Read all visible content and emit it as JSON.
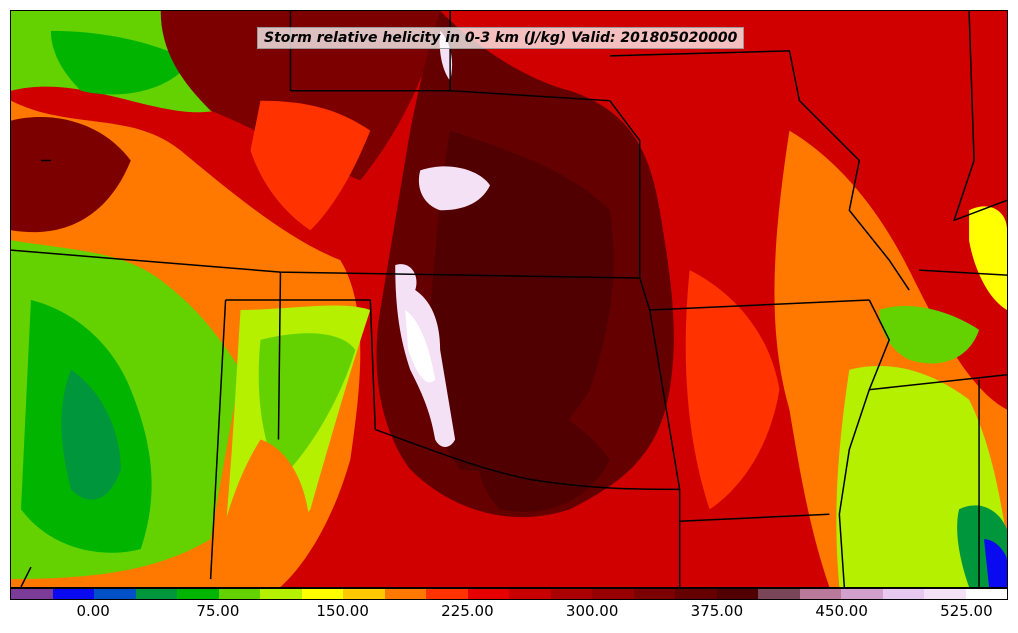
{
  "map": {
    "title": "Storm relative helicity in 0-3 km (J/kg) Valid: 201805020000",
    "variable": "Storm relative helicity in 0-3 km",
    "units": "J/kg",
    "valid_time": "201805020000",
    "region": "Central United States",
    "boundaries": "state borders, coastlines and rivers (black)"
  },
  "colorbar": {
    "ticks": [
      "0.00",
      "75.00",
      "150.00",
      "225.00",
      "300.00",
      "375.00",
      "450.00",
      "525.00"
    ],
    "tick_values": [
      0,
      75,
      150,
      225,
      300,
      375,
      450,
      525
    ],
    "range": [
      -50,
      550
    ],
    "interval": 25,
    "colors": [
      "#7a3c96",
      "#0a0af0",
      "#0050c8",
      "#00963c",
      "#00b400",
      "#64d200",
      "#b4f000",
      "#ffff00",
      "#ffc800",
      "#ff7800",
      "#ff3200",
      "#e60000",
      "#c80000",
      "#aa0000",
      "#960000",
      "#7d0000",
      "#640000",
      "#500000",
      "#784658",
      "#b9799b",
      "#d2a0cd",
      "#e6c8f0",
      "#f5e1f5",
      "#ffffff"
    ]
  }
}
